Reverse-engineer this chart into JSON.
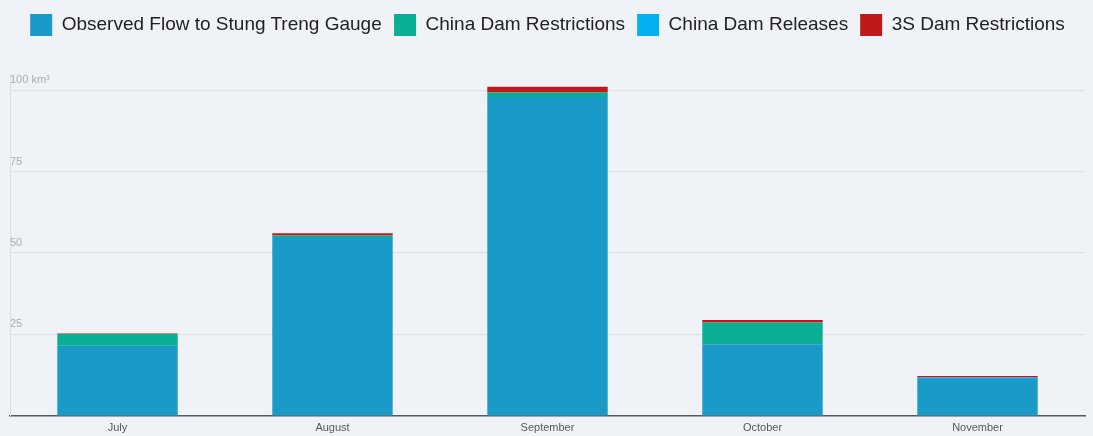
{
  "chart_data": {
    "type": "bar",
    "stacked": true,
    "categories": [
      "July",
      "August",
      "September",
      "October",
      "November"
    ],
    "series": [
      {
        "name": "Observed Flow to Stung Treng Gauge",
        "color": "#1a9ac7",
        "values": [
          21.5,
          54.9,
          97.9,
          22.0,
          11.3
        ]
      },
      {
        "name": "China Dam Restrictions",
        "color": "#0aae93",
        "values": [
          3.6,
          0.5,
          1.4,
          6.7,
          null
        ]
      },
      {
        "name": "China Dam Releases",
        "color": "#03b1f0",
        "values": [
          null,
          null,
          null,
          null,
          0.5
        ]
      },
      {
        "name": "3S Dam Restrictions",
        "color": "#c0191c",
        "values": [
          0.2,
          0.7,
          1.8,
          0.7,
          0.4
        ]
      }
    ],
    "ylim": [
      0,
      105
    ],
    "yticks": [
      25,
      50,
      75,
      {
        "value": 100,
        "label": "100 km³"
      }
    ],
    "grid": "y",
    "legend": "top"
  }
}
